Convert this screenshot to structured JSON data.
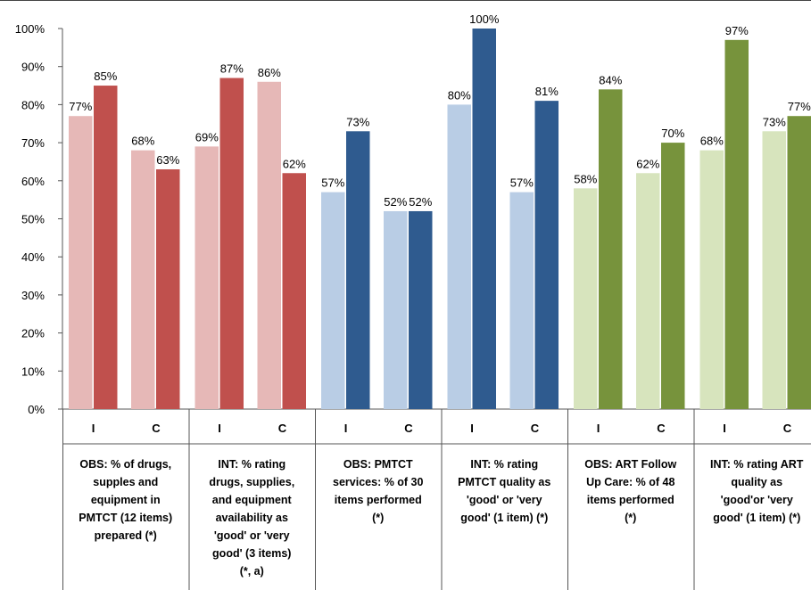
{
  "chart_data": {
    "type": "bar",
    "ylim": [
      0,
      100
    ],
    "yticks": [
      "0%",
      "10%",
      "20%",
      "30%",
      "40%",
      "50%",
      "60%",
      "70%",
      "80%",
      "90%",
      "100%"
    ],
    "groups": [
      {
        "label": "OBS: % of drugs, supples and equipment in PMTCT (12 items) prepared (*)",
        "label_lines": [
          "OBS: % of drugs,",
          "supples and",
          "equipment in",
          "PMTCT (12 items)",
          "prepared (*)"
        ],
        "bars": [
          {
            "category": "I",
            "value": 77,
            "label": "77%",
            "color": "#e6b8b7"
          },
          {
            "category": "I",
            "value": 85,
            "label": "85%",
            "color": "#c0504d"
          },
          {
            "category": "C",
            "value": 68,
            "label": "68%",
            "color": "#e6b8b7"
          },
          {
            "category": "C",
            "value": 63,
            "label": "63%",
            "color": "#c0504d"
          }
        ]
      },
      {
        "label": "INT: % rating drugs, supplies, and equipment availability as 'good' or 'very good' (3 items) (*, a)",
        "label_lines": [
          "INT: % rating",
          "drugs, supplies,",
          "and equipment",
          "availability as",
          "'good' or 'very",
          "good' (3 items)",
          "(*, a)"
        ],
        "bars": [
          {
            "category": "I",
            "value": 69,
            "label": "69%",
            "color": "#e6b8b7"
          },
          {
            "category": "I",
            "value": 87,
            "label": "87%",
            "color": "#c0504d"
          },
          {
            "category": "C",
            "value": 86,
            "label": "86%",
            "color": "#e6b8b7"
          },
          {
            "category": "C",
            "value": 62,
            "label": "62%",
            "color": "#c0504d"
          }
        ]
      },
      {
        "label": "OBS: PMTCT services: % of 30 items performed (*)",
        "label_lines": [
          "OBS: PMTCT",
          "services: % of 30",
          "items performed",
          "(*)"
        ],
        "bars": [
          {
            "category": "I",
            "value": 57,
            "label": "57%",
            "color": "#b9cde5"
          },
          {
            "category": "I",
            "value": 73,
            "label": "73%",
            "color": "#2f5b8f"
          },
          {
            "category": "C",
            "value": 52,
            "label": "52%",
            "color": "#b9cde5"
          },
          {
            "category": "C",
            "value": 52,
            "label": "52%",
            "color": "#2f5b8f"
          }
        ]
      },
      {
        "label": "INT: % rating PMTCT quality as 'good' or 'very good' (1 item) (*)",
        "label_lines": [
          "INT: % rating",
          "PMTCT quality as",
          "'good' or 'very",
          "good' (1 item)  (*)"
        ],
        "bars": [
          {
            "category": "I",
            "value": 80,
            "label": "80%",
            "color": "#b9cde5"
          },
          {
            "category": "I",
            "value": 100,
            "label": "100%",
            "color": "#2f5b8f"
          },
          {
            "category": "C",
            "value": 57,
            "label": "57%",
            "color": "#b9cde5"
          },
          {
            "category": "C",
            "value": 81,
            "label": "81%",
            "color": "#2f5b8f"
          }
        ]
      },
      {
        "label": "OBS: ART Follow Up Care: % of 48 items performed (*)",
        "label_lines": [
          "OBS: ART Follow",
          "Up Care: % of 48",
          "items performed",
          "(*)"
        ],
        "bars": [
          {
            "category": "I",
            "value": 58,
            "label": "58%",
            "color": "#d7e4bd"
          },
          {
            "category": "I",
            "value": 84,
            "label": "84%",
            "color": "#77933c"
          },
          {
            "category": "C",
            "value": 62,
            "label": "62%",
            "color": "#d7e4bd"
          },
          {
            "category": "C",
            "value": 70,
            "label": "70%",
            "color": "#77933c"
          }
        ]
      },
      {
        "label": "INT: % rating ART quality as 'good'or 'very good' (1 item) (*)",
        "label_lines": [
          "INT: % rating ART",
          "quality as",
          "'good'or 'very",
          "good' (1 item)  (*)"
        ],
        "bars": [
          {
            "category": "I",
            "value": 68,
            "label": "68%",
            "color": "#d7e4bd"
          },
          {
            "category": "I",
            "value": 97,
            "label": "97%",
            "color": "#77933c"
          },
          {
            "category": "C",
            "value": 73,
            "label": "73%",
            "color": "#d7e4bd"
          },
          {
            "category": "C",
            "value": 77,
            "label": "77%",
            "color": "#77933c"
          }
        ]
      }
    ]
  }
}
